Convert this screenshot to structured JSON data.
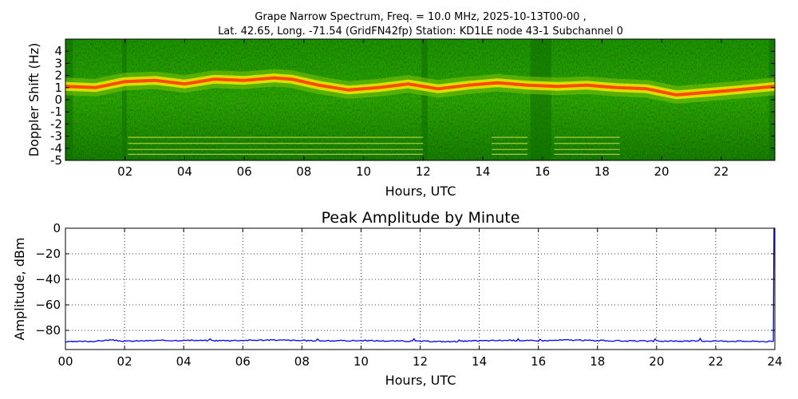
{
  "chart_data": [
    {
      "type": "heatmap",
      "title_line1": "Grape Narrow Spectrum, Freq. = 10.0 MHz, 2025-10-13T00-00 ,",
      "title_line2": "Lat.  42.65, Long. -71.54 (GridFN42fp) Station: KD1LE node 43-1 Subchannel 0",
      "xlabel": "Hours, UTC",
      "ylabel": "Doppler Shift (Hz)",
      "xlim": [
        0,
        23.8
      ],
      "ylim": [
        -5,
        5
      ],
      "xticks": [
        2,
        4,
        6,
        8,
        10,
        12,
        14,
        16,
        18,
        20,
        22
      ],
      "xtick_labels": [
        "02",
        "04",
        "06",
        "08",
        "10",
        "12",
        "14",
        "16",
        "18",
        "20",
        "22"
      ],
      "yticks": [
        -5,
        -4,
        -3,
        -2,
        -1,
        0,
        1,
        2,
        3,
        4
      ],
      "ytick_labels": [
        "-5",
        "-4",
        "-3",
        "-2",
        "-1",
        "0",
        "1",
        "2",
        "3",
        "4"
      ],
      "colors": {
        "background": "#1a8c00",
        "background_dark": "#0f6e00",
        "trace": "#ff4a00",
        "halo": "#f2e600"
      },
      "doppler_trace": {
        "hours": [
          0,
          1,
          2,
          3,
          4,
          5,
          6,
          7,
          7.6,
          8.5,
          9.5,
          10.5,
          11.5,
          12.5,
          13.5,
          14.5,
          15.5,
          16.5,
          17.5,
          18.5,
          19.5,
          20.5,
          21.5,
          22.5,
          23.8
        ],
        "shift_hz": [
          1.1,
          1.0,
          1.5,
          1.6,
          1.3,
          1.7,
          1.6,
          1.8,
          1.7,
          1.2,
          0.8,
          1.0,
          1.3,
          0.9,
          1.2,
          1.4,
          1.2,
          1.1,
          1.2,
          1.0,
          0.9,
          0.4,
          0.6,
          0.8,
          1.1
        ]
      },
      "tone_lines": {
        "segments_hours": [
          [
            2.1,
            12.0
          ],
          [
            14.3,
            15.5
          ],
          [
            16.4,
            18.6
          ]
        ],
        "shift_hz": [
          -3.1,
          -3.6,
          -4.1,
          -4.5
        ]
      }
    },
    {
      "type": "line",
      "title": "Peak Amplitude by Minute",
      "xlabel": "Hours, UTC",
      "ylabel": "Amplitude, dBm",
      "xlim": [
        0,
        24
      ],
      "ylim": [
        -95,
        0
      ],
      "grid": true,
      "xticks": [
        0,
        2,
        4,
        6,
        8,
        10,
        12,
        14,
        16,
        18,
        20,
        22,
        24
      ],
      "xtick_labels": [
        "00",
        "02",
        "04",
        "06",
        "08",
        "10",
        "12",
        "14",
        "16",
        "18",
        "20",
        "22",
        "24"
      ],
      "yticks": [
        0,
        -20,
        -40,
        -60,
        -80
      ],
      "ytick_labels": [
        "0",
        "−20",
        "−40",
        "−60",
        "−80"
      ],
      "line_color": "#0000ff",
      "series": [
        {
          "x": [
            0,
            1,
            1.5,
            2,
            3,
            4,
            5,
            6,
            7,
            8,
            9,
            10,
            11,
            12,
            13,
            14,
            15,
            16,
            17,
            18,
            19,
            20,
            21,
            22,
            23,
            23.95,
            23.97,
            24
          ],
          "values": [
            -89,
            -88.5,
            -87.5,
            -88.5,
            -88,
            -87.8,
            -88,
            -87.8,
            -87.5,
            -88,
            -88.2,
            -88,
            -88.3,
            -88.5,
            -88.8,
            -88.2,
            -87.8,
            -88.2,
            -87.5,
            -88,
            -88.3,
            -88.5,
            -88.4,
            -88.3,
            -88.5,
            -88.8,
            0,
            0
          ]
        }
      ]
    }
  ]
}
